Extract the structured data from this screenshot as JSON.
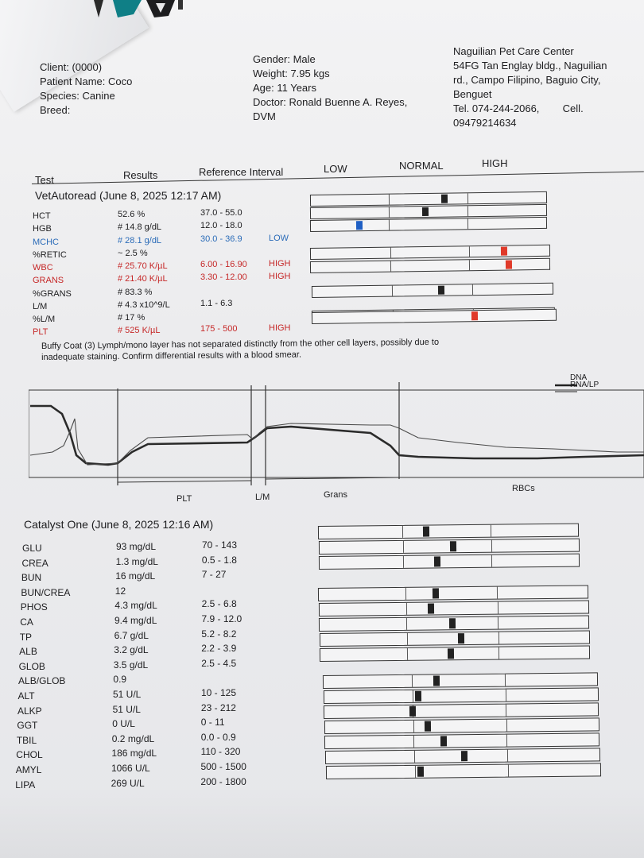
{
  "client": {
    "client_label": "Client: (0000)",
    "patient_label": "Patient Name: Coco",
    "species_label": "Species: Canine",
    "breed_label": "Breed:"
  },
  "patient": {
    "gender": "Gender: Male",
    "weight": "Weight: 7.95 kgs",
    "age": "Age: 11 Years",
    "doctor": "Doctor: Ronald Buenne A. Reyes,",
    "doctor_title": "DVM"
  },
  "clinic": {
    "name": "Naguilian Pet Care Center",
    "address1": "54FG Tan Englay bldg., Naguilian",
    "address2": "rd., Campo Filipino, Baguio City,",
    "address3": "Benguet",
    "tel": "Tel. 074-244-2066,",
    "cell_label": "Cell.",
    "cell": "09479214634"
  },
  "table_header": {
    "test": "Test",
    "results": "Results",
    "reference": "Reference Interval",
    "low": "LOW",
    "normal": "NORMAL",
    "high": "HIGH"
  },
  "vet_autoread": {
    "title": "VetAutoread (June 8, 2025 12:17 AM)",
    "rows": [
      {
        "test": "HCT",
        "result": "52.6 %",
        "ref": "37.0 - 55.0",
        "flag": "",
        "color": "normal",
        "bar": 0.55
      },
      {
        "test": "HGB",
        "result": "# 14.8 g/dL",
        "ref": "12.0 - 18.0",
        "flag": "",
        "color": "normal",
        "bar": 0.47
      },
      {
        "test": "MCHC",
        "result": "# 28.1 g/dL",
        "ref": "30.0 - 36.9",
        "flag": "LOW",
        "color": "low",
        "bar": 0.19
      },
      {
        "test": "%RETIC",
        "result": "~ 2.5 %",
        "ref": "",
        "flag": "",
        "color": "normal",
        "bar": null
      },
      {
        "test": "WBC",
        "result": "# 25.70 K/µL",
        "ref": "6.00 - 16.90",
        "flag": "HIGH",
        "color": "high",
        "bar": 0.79
      },
      {
        "test": "GRANS",
        "result": "# 21.40 K/µL",
        "ref": "3.30 - 12.00",
        "flag": "HIGH",
        "color": "high",
        "bar": 0.81
      },
      {
        "test": "%GRANS",
        "result": "# 83.3 %",
        "ref": "",
        "flag": "",
        "color": "normal",
        "bar": 0.52
      },
      {
        "test": "L/M",
        "result": "# 4.3 x10^9/L",
        "ref": "1.1 - 6.3",
        "flag": "",
        "color": "normal",
        "bar": null
      },
      {
        "test": "%L/M",
        "result": "# 17 %",
        "ref": "",
        "flag": "",
        "color": "normal",
        "bar": 0.66
      },
      {
        "test": "PLT",
        "result": "# 525 K/µL",
        "ref": "175 - 500",
        "flag": "HIGH",
        "color": "high",
        "bar": null
      }
    ]
  },
  "buffy_coat": {
    "line1": "Buffy Coat (3)  Lymph/mono layer has not separated distinctly from the other cell layers, possibly due to",
    "line2": "inadequate staining.  Confirm differential  results with a blood smear."
  },
  "buffy_chart": {
    "legend_dna": "DNA",
    "legend_rna": "RNA/LP",
    "labels": [
      "PLT",
      "L/M",
      "Grans",
      "RBCs"
    ]
  },
  "catalyst": {
    "title": "Catalyst One (June 8, 2025 12:16 AM)",
    "rows": [
      {
        "test": "GLU",
        "result": "93 mg/dL",
        "ref": "70 - 143",
        "bar": 0.4
      },
      {
        "test": "CREA",
        "result": "1.3 mg/dL",
        "ref": "0.5 - 1.8",
        "bar": 0.5
      },
      {
        "test": "BUN",
        "result": "16 mg/dL",
        "ref": "7 - 27",
        "bar": 0.44
      },
      {
        "test": "BUN/CREA",
        "result": "12",
        "ref": "",
        "bar": null
      },
      {
        "test": "PHOS",
        "result": "4.3 mg/dL",
        "ref": "2.5 - 6.8",
        "bar": 0.42
      },
      {
        "test": "CA",
        "result": "9.4 mg/dL",
        "ref": "7.9 - 12.0",
        "bar": 0.4
      },
      {
        "test": "TP",
        "result": "6.7 g/dL",
        "ref": "5.2 - 8.2",
        "bar": 0.48
      },
      {
        "test": "ALB",
        "result": "3.2 g/dL",
        "ref": "2.2 - 3.9",
        "bar": 0.51
      },
      {
        "test": "GLOB",
        "result": "3.5 g/dL",
        "ref": "2.5 - 4.5",
        "bar": 0.47
      },
      {
        "test": "ALB/GLOB",
        "result": "0.9",
        "ref": "",
        "bar": null
      },
      {
        "test": "ALT",
        "result": "51 U/L",
        "ref": "10 - 125",
        "bar": 0.4
      },
      {
        "test": "ALKP",
        "result": "51 U/L",
        "ref": "23 - 212",
        "bar": 0.33
      },
      {
        "test": "GGT",
        "result": "0 U/L",
        "ref": "0 - 11",
        "bar": 0.31
      },
      {
        "test": "TBIL",
        "result": "0.2 mg/dL",
        "ref": "0.0 - 0.9",
        "bar": 0.36
      },
      {
        "test": "CHOL",
        "result": "186 mg/dL",
        "ref": "110 - 320",
        "bar": 0.42
      },
      {
        "test": "AMYL",
        "result": "1066 U/L",
        "ref": "500 - 1500",
        "bar": 0.49
      },
      {
        "test": "LIPA",
        "result": "269 U/L",
        "ref": "200 - 1800",
        "bar": 0.33
      }
    ]
  },
  "colors": {
    "normal": "#1d1d1f",
    "low": "#2a6bb8",
    "high": "#c62828",
    "marker": "#222222",
    "marker_high": "#e03a2a",
    "marker_low": "#1f5fc4"
  }
}
